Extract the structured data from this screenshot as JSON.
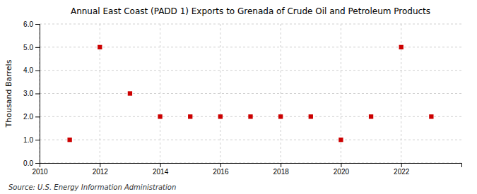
{
  "chart_data": {
    "type": "scatter",
    "title": "Annual East Coast (PADD 1) Exports to Grenada of Crude Oil and Petroleum Products",
    "y_label": "Thousand Barrels",
    "source": "Source: U.S. Energy Information Administration",
    "x": [
      2011,
      2012,
      2013,
      2014,
      2015,
      2016,
      2017,
      2018,
      2019,
      2020,
      2021,
      2022,
      2023
    ],
    "values": [
      1,
      5,
      3,
      2,
      2,
      2,
      2,
      2,
      2,
      1,
      2,
      5,
      2
    ],
    "color": "#cc0000",
    "marker": "square",
    "xlim": [
      2010,
      2024
    ],
    "xticks": [
      2010,
      2012,
      2014,
      2016,
      2018,
      2020,
      2022
    ],
    "ylim": [
      0,
      6
    ],
    "yticks": [
      {
        "value": 0,
        "label": "0.0"
      },
      {
        "value": 1,
        "label": "1.0"
      },
      {
        "value": 2,
        "label": "2.0"
      },
      {
        "value": 3,
        "label": "3.0"
      },
      {
        "value": 4,
        "label": "4.0"
      },
      {
        "value": 5,
        "label": "5.0"
      },
      {
        "value": 6,
        "label": "6.0"
      }
    ],
    "grid": true
  }
}
